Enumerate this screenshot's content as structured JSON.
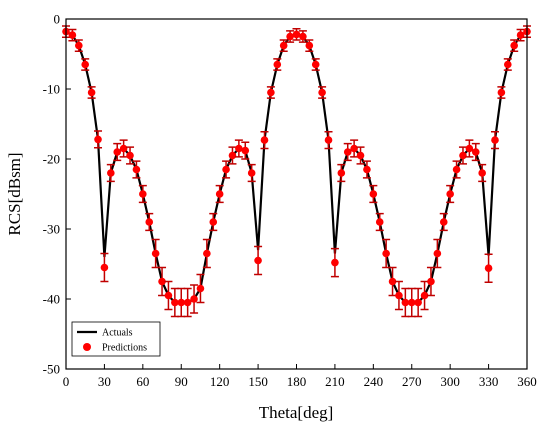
{
  "chart_data": {
    "type": "line_errorbar",
    "xlabel": "Theta[deg]",
    "ylabel": "RCS[dBsm]",
    "x": [
      0,
      5,
      10,
      15,
      20,
      25,
      30,
      35,
      40,
      45,
      50,
      55,
      60,
      65,
      70,
      75,
      80,
      85,
      90,
      95,
      100,
      105,
      110,
      115,
      120,
      125,
      130,
      135,
      140,
      145,
      150,
      155,
      160,
      165,
      170,
      175,
      180,
      185,
      190,
      195,
      200,
      205,
      210,
      215,
      220,
      225,
      230,
      235,
      240,
      245,
      250,
      255,
      260,
      265,
      270,
      275,
      280,
      285,
      290,
      295,
      300,
      305,
      310,
      315,
      320,
      325,
      330,
      335,
      340,
      345,
      350,
      355,
      360
    ],
    "series": [
      {
        "name": "Actuals",
        "color": "#000000",
        "values": [
          -1.8,
          -2.3,
          -3.8,
          -6.5,
          -10.5,
          -17.2,
          -34,
          -22,
          -19,
          -18.5,
          -19.5,
          -21.5,
          -25,
          -29,
          -33.5,
          -37.5,
          -39.5,
          -40.5,
          -40.5,
          -40.5,
          -40,
          -38.5,
          -33.5,
          -29,
          -25,
          -21.5,
          -19.5,
          -18.5,
          -18.8,
          -22,
          -33,
          -17.3,
          -10.5,
          -6.5,
          -3.8,
          -2.5,
          -2.2,
          -2.5,
          -3.8,
          -6.5,
          -10.5,
          -17.3,
          -33.5,
          -22,
          -19,
          -18.5,
          -19.5,
          -21.5,
          -25,
          -29,
          -33.5,
          -37.5,
          -39.5,
          -40.5,
          -40.5,
          -40.5,
          -39.5,
          -37.5,
          -33.5,
          -29,
          -25,
          -21.5,
          -19.5,
          -18.5,
          -19,
          -22,
          -33.8,
          -17.3,
          -10.5,
          -6.5,
          -3.8,
          -2.3,
          -1.8
        ]
      },
      {
        "name": "Predictions",
        "color": "#ff0000",
        "error_color": "#c00000",
        "values": [
          -1.8,
          -2.3,
          -3.8,
          -6.5,
          -10.5,
          -17.2,
          -35.5,
          -22,
          -19,
          -18.5,
          -19.5,
          -21.5,
          -25,
          -29,
          -33.5,
          -37.5,
          -39.5,
          -40.5,
          -40.5,
          -40.5,
          -40,
          -38.5,
          -33.5,
          -29,
          -25,
          -21.5,
          -19.5,
          -18.5,
          -18.8,
          -22,
          -34.5,
          -17.3,
          -10.5,
          -6.5,
          -3.8,
          -2.5,
          -2.2,
          -2.5,
          -3.8,
          -6.5,
          -10.5,
          -17.3,
          -34.8,
          -22,
          -19,
          -18.5,
          -19.5,
          -21.5,
          -25,
          -29,
          -33.5,
          -37.5,
          -39.5,
          -40.5,
          -40.5,
          -40.5,
          -39.5,
          -37.5,
          -33.5,
          -29,
          -25,
          -21.5,
          -19.5,
          -18.5,
          -19,
          -22,
          -35.6,
          -17.3,
          -10.5,
          -6.5,
          -3.8,
          -2.3,
          -1.8
        ],
        "errors": [
          0.8,
          0.8,
          0.8,
          0.8,
          0.8,
          1.2,
          2,
          1.2,
          1.2,
          1.2,
          1.2,
          1.2,
          1.2,
          1.2,
          2,
          2,
          2,
          2,
          2,
          2,
          2,
          2,
          2,
          1.2,
          1.2,
          1.2,
          1.2,
          1.2,
          1.2,
          1.2,
          2,
          1.2,
          0.8,
          0.8,
          0.8,
          0.8,
          0.8,
          0.8,
          0.8,
          0.8,
          0.8,
          1.2,
          2,
          1.2,
          1.2,
          1.2,
          1.2,
          1.2,
          1.2,
          1.2,
          2,
          2,
          2,
          2,
          2,
          2,
          2,
          2,
          2,
          1.2,
          1.2,
          1.2,
          1.2,
          1.2,
          1.2,
          1.2,
          2,
          1.2,
          0.8,
          0.8,
          0.8,
          0.8,
          0.8
        ]
      }
    ],
    "xlim": [
      0,
      360
    ],
    "xticks": [
      0,
      30,
      60,
      90,
      120,
      150,
      180,
      210,
      240,
      270,
      300,
      330,
      360
    ],
    "ylim": [
      -50,
      0
    ],
    "yticks": [
      -50,
      -40,
      -30,
      -20,
      -10,
      0
    ],
    "legend": "lower left"
  }
}
